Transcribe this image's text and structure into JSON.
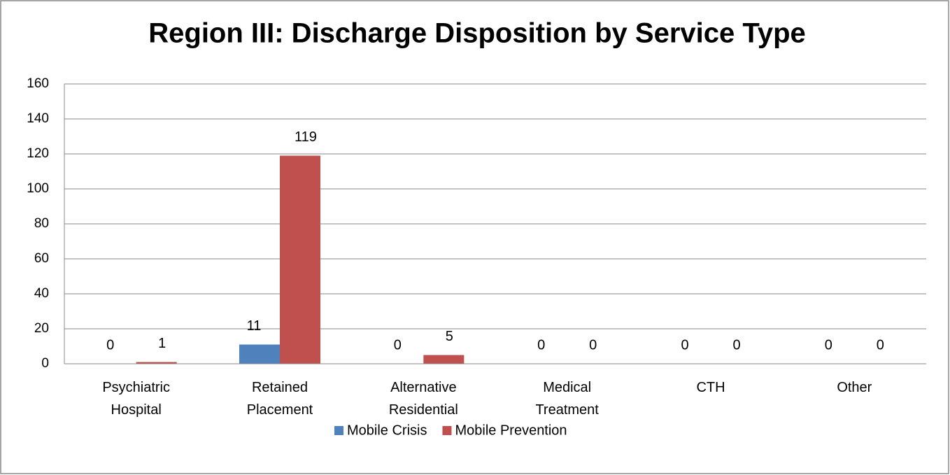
{
  "chart_data": {
    "type": "bar",
    "title": "Region III: Discharge Disposition by Service Type",
    "categories": [
      "Psychiatric Hospital",
      "Retained Placement",
      "Alternative Residential",
      "Medical Treatment",
      "CTH",
      "Other"
    ],
    "series": [
      {
        "name": "Mobile Crisis",
        "color": "#4f81bd",
        "values": [
          0,
          11,
          0,
          0,
          0,
          0
        ]
      },
      {
        "name": "Mobile Prevention",
        "color": "#c0504d",
        "values": [
          1,
          119,
          5,
          0,
          0,
          0
        ]
      }
    ],
    "ylim": [
      0,
      160
    ],
    "yticks": [
      0,
      20,
      40,
      60,
      80,
      100,
      120,
      140,
      160
    ],
    "grid": true,
    "legend": "bottom"
  }
}
